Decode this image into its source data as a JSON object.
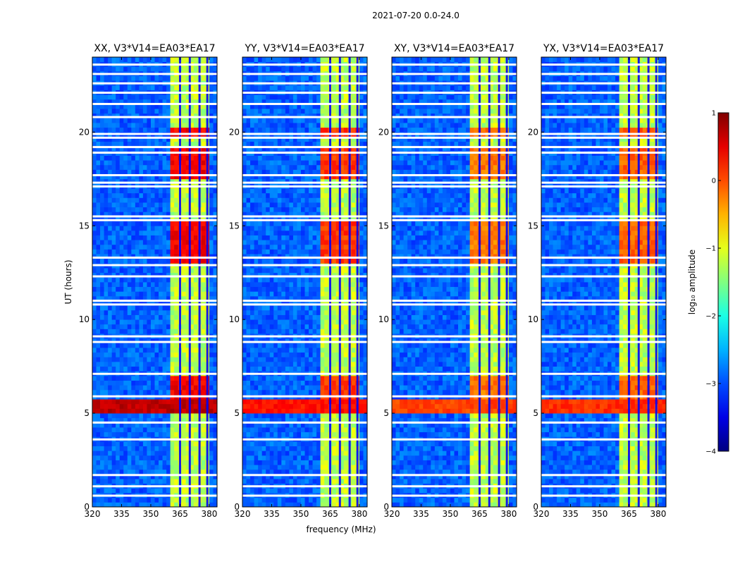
{
  "figure": {
    "suptitle": "2021-07-20 0.0-24.0",
    "xlabel": "frequency (MHz)",
    "ylabel": "UT (hours)",
    "colorbar_label": "log₁₀ amplitude"
  },
  "chart_data": {
    "type": "heatmap",
    "panels": [
      {
        "title": "XX, V3*V14=EA03*EA17",
        "band_peak": 0.6,
        "rfi_peak": 0.85
      },
      {
        "title": "YY, V3*V14=EA03*EA17",
        "band_peak": 0.3,
        "rfi_peak": 0.45
      },
      {
        "title": "XY, V3*V14=EA03*EA17",
        "band_peak": 0.0,
        "rfi_peak": 0.2
      },
      {
        "title": "YX, V3*V14=EA03*EA17",
        "band_peak": 0.1,
        "rfi_peak": 0.3
      }
    ],
    "xlim": [
      320,
      384
    ],
    "ylim": [
      0,
      24
    ],
    "x_ticks": [
      320,
      335,
      350,
      365,
      380
    ],
    "y_ticks": [
      0,
      5,
      10,
      15,
      20
    ],
    "colormap": "jet",
    "color_range": [
      -4,
      1
    ],
    "colorbar_ticks": [
      1,
      0,
      -1,
      -2,
      -3,
      -4
    ],
    "background_level": -2.9,
    "active_band_mhz": [
      361,
      380
    ],
    "channel_gaps_mhz": [
      365,
      370,
      375,
      379
    ],
    "rfi_band_hours": [
      5.0,
      5.8
    ],
    "bright_periods_hours": [
      [
        5.0,
        7.0
      ],
      [
        13.0,
        15.2
      ],
      [
        17.5,
        19.3
      ],
      [
        19.8,
        20.2
      ]
    ],
    "flagged_gaps_hours": [
      0.6,
      1.1,
      1.7,
      3.6,
      4.5,
      5.9,
      7.1,
      8.8,
      9.1,
      10.8,
      11.0,
      12.3,
      12.9,
      13.3,
      15.3,
      15.5,
      17.1,
      17.3,
      17.7,
      18.9,
      19.2,
      19.7,
      19.9,
      20.8,
      21.5,
      22.1,
      22.6,
      23.1,
      23.6
    ],
    "notes": "Dynamic spectra of baseline EA03*EA17: x = frequency (MHz), y = UT (hours), color = log10 amplitude"
  }
}
